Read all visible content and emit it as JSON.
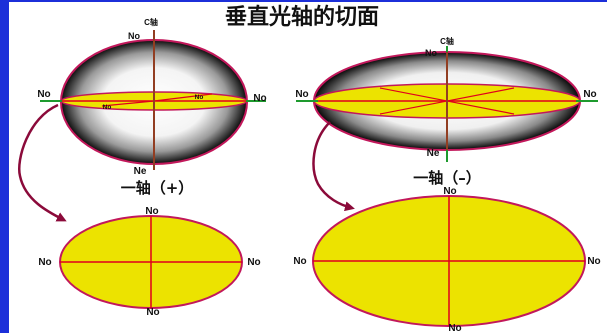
{
  "title": "垂直光轴的切面",
  "left": {
    "axis_top_label": "C轴",
    "axis_top_no": "No",
    "equator_left": "No",
    "equator_right": "No",
    "inner_a": "No",
    "inner_b": "No",
    "bottom_label": "Ne",
    "caption": "一轴（+）",
    "section": {
      "top": "No",
      "bottom": "No",
      "left": "No",
      "right": "No"
    }
  },
  "right": {
    "axis_top_label": "C轴",
    "axis_top_no": "No",
    "equator_left": "No",
    "equator_right": "No",
    "bottom_label": "Ne",
    "caption": "一轴（–）",
    "section": {
      "top": "No",
      "bottom": "No",
      "left": "No",
      "right": "No"
    }
  },
  "colors": {
    "frame": "#1c2fd9",
    "section_fill": "#ece300",
    "outline": "#c2185b",
    "axis_red": "#e0001c",
    "optic_axis": "#1e9a2e",
    "arrow": "#8b0a3a"
  }
}
